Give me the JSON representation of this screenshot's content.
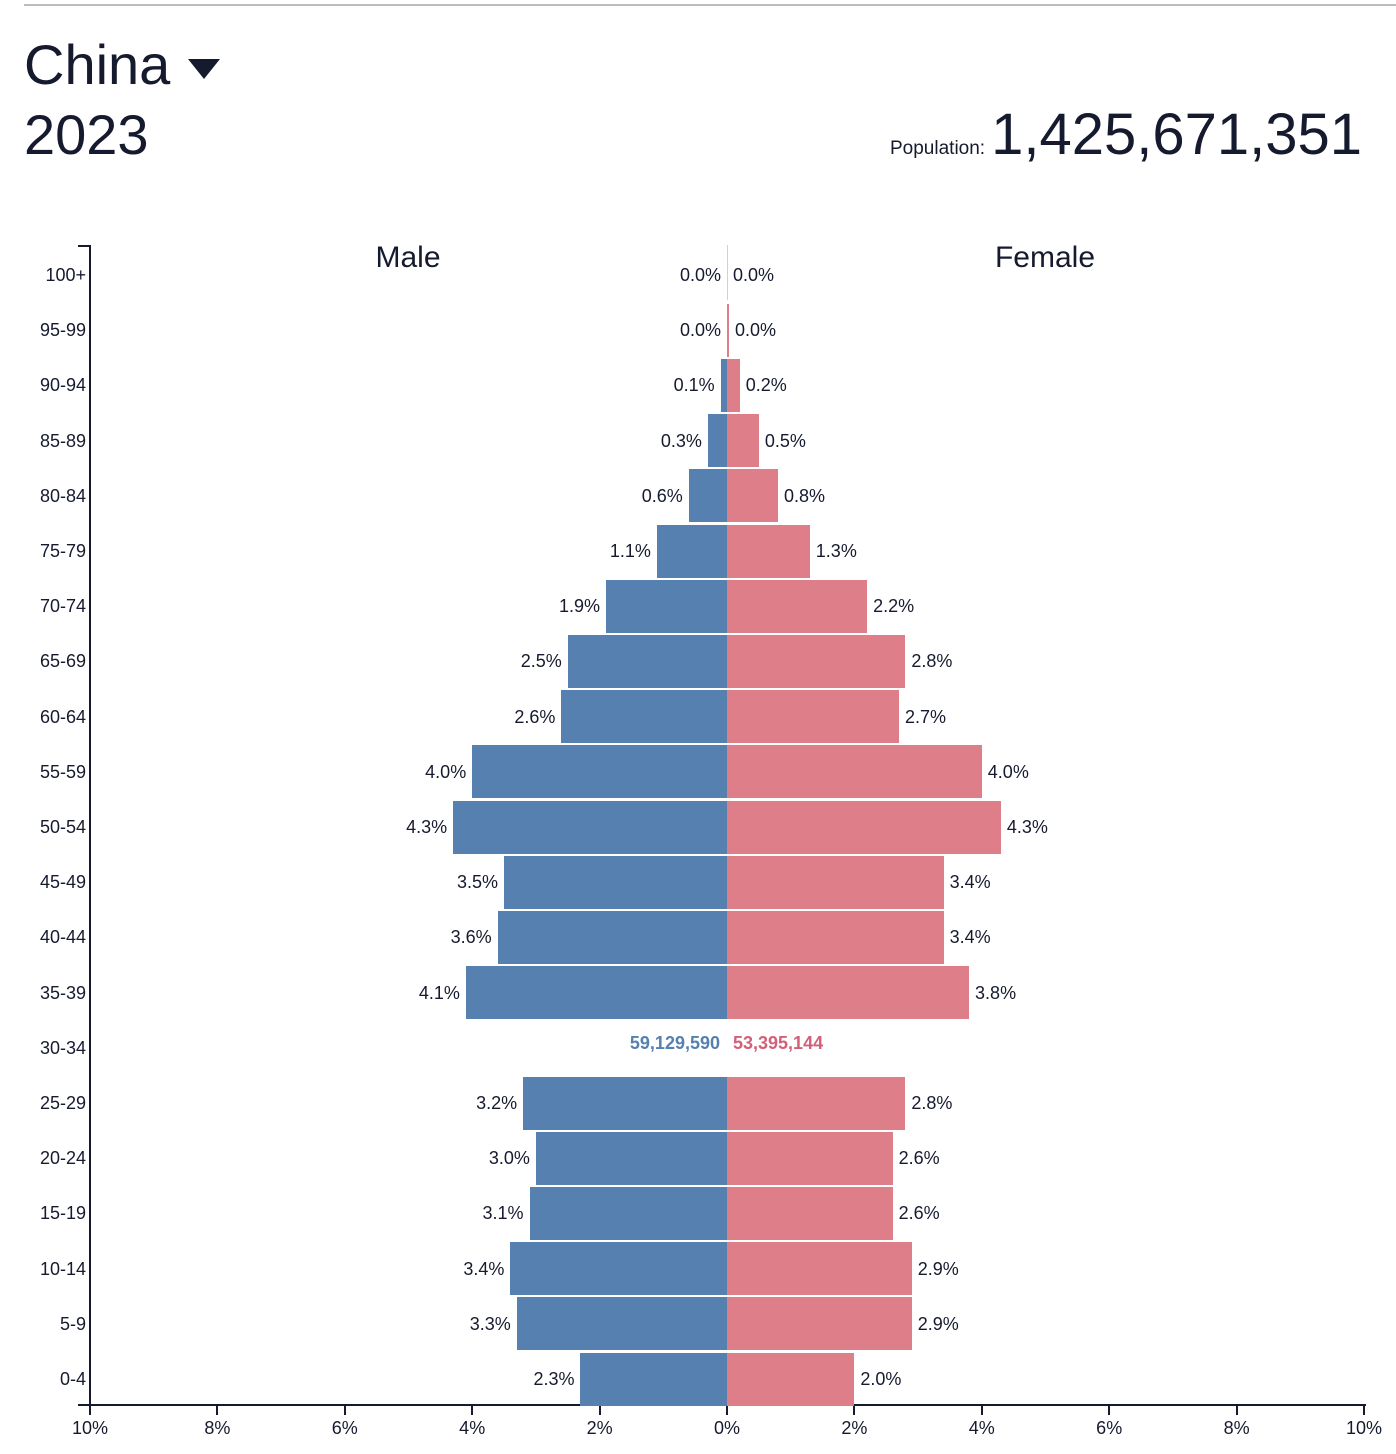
{
  "header": {
    "country": "China",
    "year": "2023",
    "population_label": "Population:",
    "population_value": "1,425,671,351"
  },
  "colors": {
    "male": "#5580b0",
    "female": "#de7e88",
    "male_count_text": "#5580b0",
    "female_count_text": "#d2607a",
    "text": "#161a2e"
  },
  "chart_data": {
    "type": "bar",
    "subtype": "population-pyramid",
    "title": "China 2023",
    "xlabel": "",
    "ylabel": "",
    "orientation": "horizontal",
    "xlim": [
      -10,
      10
    ],
    "x_ticks": [
      "10%",
      "8%",
      "6%",
      "4%",
      "2%",
      "0%",
      "2%",
      "4%",
      "6%",
      "8%",
      "10%"
    ],
    "grid": false,
    "legend": {
      "male_label": "Male",
      "female_label": "Female",
      "position": "top"
    },
    "categories": [
      "100+",
      "95-99",
      "90-94",
      "85-89",
      "80-84",
      "75-79",
      "70-74",
      "65-69",
      "60-64",
      "55-59",
      "50-54",
      "45-49",
      "40-44",
      "35-39",
      "30-34",
      "25-29",
      "20-24",
      "15-19",
      "10-14",
      "5-9",
      "0-4"
    ],
    "series": [
      {
        "name": "Male",
        "values": [
          0.0,
          0.0,
          0.1,
          0.3,
          0.6,
          1.1,
          1.9,
          2.5,
          2.6,
          4.0,
          4.3,
          3.5,
          3.6,
          4.1,
          null,
          3.2,
          3.0,
          3.1,
          3.4,
          3.3,
          2.3
        ],
        "labels": [
          "0.0%",
          "0.0%",
          "0.1%",
          "0.3%",
          "0.6%",
          "1.1%",
          "1.9%",
          "2.5%",
          "2.6%",
          "4.0%",
          "4.3%",
          "3.5%",
          "3.6%",
          "4.1%",
          "",
          "3.2%",
          "3.0%",
          "3.1%",
          "3.4%",
          "3.3%",
          "2.3%"
        ]
      },
      {
        "name": "Female",
        "values": [
          0.0,
          0.0,
          0.2,
          0.5,
          0.8,
          1.3,
          2.2,
          2.8,
          2.7,
          4.0,
          4.3,
          3.4,
          3.4,
          3.8,
          null,
          2.8,
          2.6,
          2.6,
          2.9,
          2.9,
          2.0
        ],
        "labels": [
          "0.0%",
          "0.0%",
          "0.2%",
          "0.5%",
          "0.8%",
          "1.3%",
          "2.2%",
          "2.8%",
          "2.7%",
          "4.0%",
          "4.3%",
          "3.4%",
          "3.4%",
          "3.8%",
          "",
          "2.8%",
          "2.6%",
          "2.6%",
          "2.9%",
          "2.9%",
          "2.0%"
        ]
      }
    ],
    "hover_row": {
      "category": "30-34",
      "male_count": "59,129,590",
      "female_count": "53,395,144"
    }
  }
}
